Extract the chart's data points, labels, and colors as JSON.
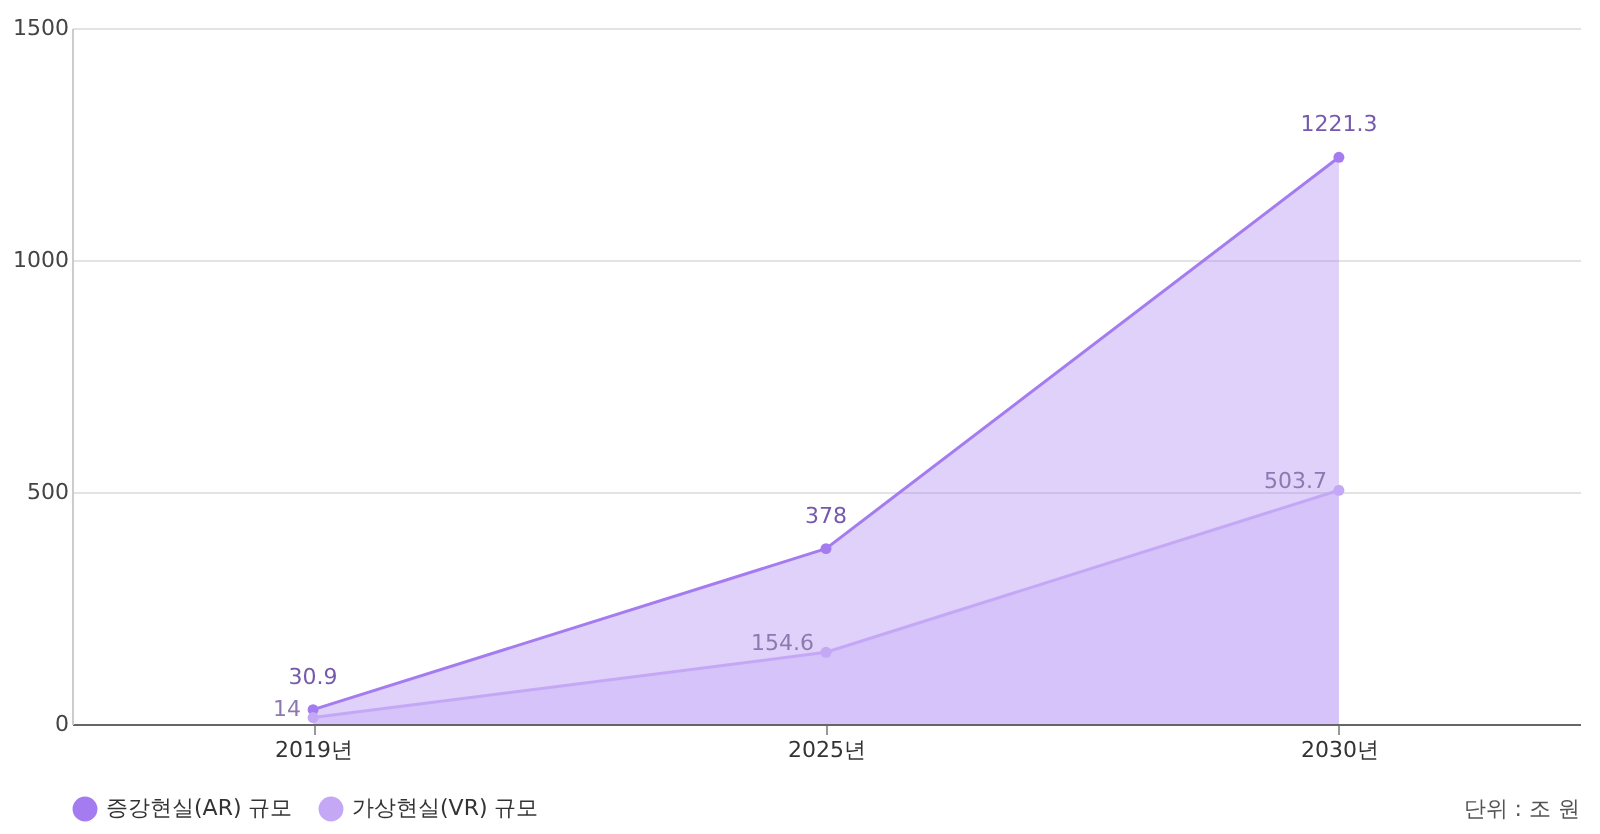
{
  "chart_data": {
    "type": "area",
    "categories": [
      "2019년",
      "2025년",
      "2030년"
    ],
    "series": [
      {
        "name": "증강현실(AR) 규모",
        "color": "#a47cf0",
        "values": [
          30.9,
          378,
          1221.3
        ],
        "value_labels": [
          "30.9",
          "378",
          "1221.3"
        ]
      },
      {
        "name": "가상현실(VR) 규모",
        "color": "#c4a8f6",
        "values": [
          14,
          154.6,
          503.7
        ],
        "value_labels": [
          "14",
          "154.6",
          "503.7"
        ]
      }
    ],
    "ylim": [
      0,
      1500
    ],
    "yticks": [
      0,
      500,
      1000,
      1500
    ],
    "grid": "y",
    "legend": "bottom",
    "marker": "circle",
    "annotations": [
      "단위 : 조 원"
    ]
  }
}
